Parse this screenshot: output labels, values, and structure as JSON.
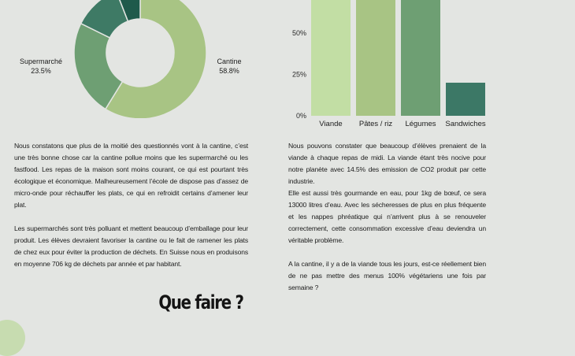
{
  "chart_data": [
    {
      "type": "pie",
      "donut": true,
      "slices": [
        {
          "label": "Cantine",
          "value": 58.8,
          "value_text": "58.8%",
          "color": "#a8c484"
        },
        {
          "label": "Supermarché",
          "value": 23.5,
          "value_text": "23.5%",
          "color": "#6e9f73"
        },
        {
          "label": "",
          "value": 11.8,
          "value_text": "",
          "color": "#3e7a65"
        },
        {
          "label": "",
          "value": 5.9,
          "value_text": "",
          "color": "#1f5a4b"
        }
      ]
    },
    {
      "type": "bar",
      "categories": [
        "Viande",
        "Pâtes / riz",
        "Légumes",
        "Sandwiches"
      ],
      "values": [
        70,
        70,
        70,
        20
      ],
      "colors": [
        "#c2dea4",
        "#a8c484",
        "#6e9f73",
        "#3c7866"
      ],
      "yticks": [
        "0%",
        "25%",
        "50%"
      ],
      "ylim": [
        0,
        70
      ],
      "title": "",
      "xlabel": "",
      "ylabel": ""
    }
  ],
  "left_text": {
    "p1": "Nous constatons que plus de la moitié des questionnés vont à la cantine, c’est une très bonne chose car la cantine pollue moins que les supermarché ou les fastfood. Les repas de la maison sont moins courant, ce qui est pourtant très écologique et économique. Malheureusement l’école de dispose pas d’assez de micro-onde pour réchauffer les plats, ce qui en refroidit certains d’amener leur plat.",
    "p2": "Les supermarchés sont très polluant et mettent beaucoup d’emballage pour leur produit. Les élèves devraient favoriser la cantine ou le fait de ramener les plats de chez eux pour éviter la production de déchets. En Suisse nous en produisons en moyenne 706 kg de déchets par année et par habitant."
  },
  "right_text": {
    "p1": "Nous pouvons constater que beaucoup d’élèves prenaient de la viande à chaque repas de midi. La viande étant très nocive pour notre planète avec 14.5% des emission de CO2 produit par cette industrie.",
    "p2": "Elle est aussi très gourmande en eau, pour 1kg de bœuf, ce sera 13000 litres d’eau. Avec les sécheresses de plus en plus fréquente et les nappes phréatique qui n’arrivent plus à se renouveler correctement, cette consommation excessive d’eau deviendra un véritable problème.",
    "p3": "A la cantine, il y a de la viande tous les jours, est-ce réellement bien de ne pas mettre des menus 100% végétariens une fois par semaine ?"
  },
  "heading": "Que faire ?"
}
